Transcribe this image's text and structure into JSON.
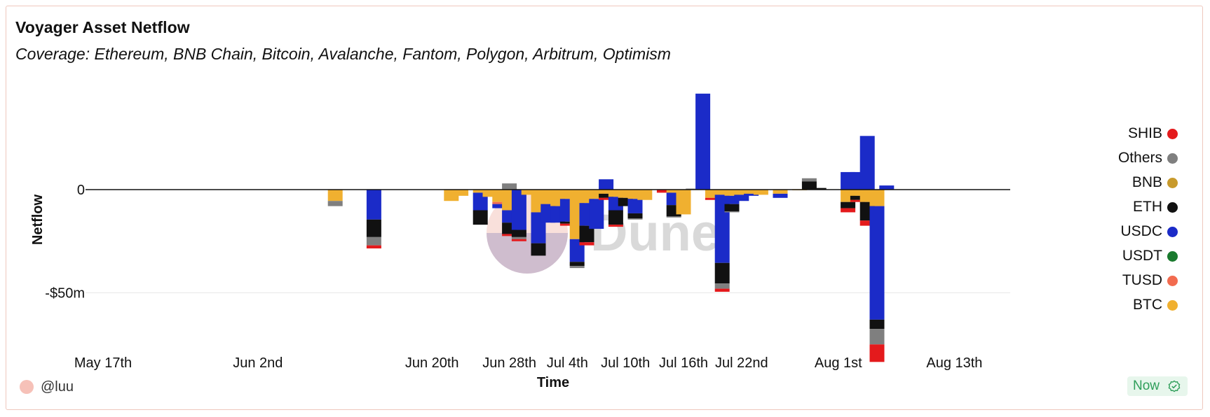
{
  "title": "Voyager Asset Netflow",
  "subtitle": "Coverage: Ethereum, BNB Chain, Bitcoin, Avalanche, Fantom, Polygon, Arbitrum, Optimism",
  "watermark": "Dune",
  "author": "@luu",
  "now_label": "Now",
  "legend": [
    {
      "name": "SHIB",
      "color": "#e41a1c"
    },
    {
      "name": "Others",
      "color": "#7f7f7f"
    },
    {
      "name": "BNB",
      "color": "#c89a2c"
    },
    {
      "name": "ETH",
      "color": "#111111"
    },
    {
      "name": "USDC",
      "color": "#1b2bc8"
    },
    {
      "name": "USDT",
      "color": "#1a7a2e"
    },
    {
      "name": "TUSD",
      "color": "#f26b4f"
    },
    {
      "name": "BTC",
      "color": "#f0b030"
    }
  ],
  "chart_data": {
    "type": "bar",
    "stacked": true,
    "title": "Voyager Asset Netflow",
    "xlabel": "Time",
    "ylabel": "Netflow",
    "x_range": [
      "2022-05-17",
      "2022-08-15"
    ],
    "ylim": [
      -75,
      48
    ],
    "y_ticks": [
      {
        "value": 0,
        "label": "0"
      },
      {
        "value": -50,
        "label": "-$50m"
      }
    ],
    "x_ticks": [
      {
        "date": "2022-05-17",
        "label": "May 17th"
      },
      {
        "date": "2022-06-02",
        "label": "Jun 2nd"
      },
      {
        "date": "2022-06-20",
        "label": "Jun 20th"
      },
      {
        "date": "2022-06-28",
        "label": "Jun 28th"
      },
      {
        "date": "2022-07-04",
        "label": "Jul 4th"
      },
      {
        "date": "2022-07-10",
        "label": "Jul 10th"
      },
      {
        "date": "2022-07-16",
        "label": "Jul 16th"
      },
      {
        "date": "2022-07-22",
        "label": "Jul 22nd"
      },
      {
        "date": "2022-08-01",
        "label": "Aug 1st"
      },
      {
        "date": "2022-08-13",
        "label": "Aug 13th"
      }
    ],
    "units": "USD millions",
    "bars": [
      {
        "date": "2022-06-10",
        "BTC": -5.5,
        "Others": -2.5
      },
      {
        "date": "2022-06-14",
        "USDC": -14.5,
        "ETH": -8.5,
        "Others": -4,
        "SHIB": -1.5
      },
      {
        "date": "2022-06-22",
        "BTC": -5.5
      },
      {
        "date": "2022-06-23",
        "BTC": -3
      },
      {
        "date": "2022-06-25",
        "BTC": -1.5,
        "USDC": -8.5,
        "ETH": -7
      },
      {
        "date": "2022-06-26",
        "BTC": -3.5
      },
      {
        "date": "2022-06-27",
        "BTC": -6,
        "USDC": -2,
        "TUSD": -1
      },
      {
        "date": "2022-06-28",
        "BTC": -10,
        "USDC": -6,
        "ETH": -5.5,
        "Others": 3,
        "SHIB": -1
      },
      {
        "date": "2022-06-29",
        "USDC": -19.5,
        "ETH": -3.5,
        "Others": -1,
        "SHIB": -1
      },
      {
        "date": "2022-06-30",
        "BTC": -2.5
      },
      {
        "date": "2022-07-01",
        "BTC": -11,
        "USDC": -15,
        "ETH": -6
      },
      {
        "date": "2022-07-02",
        "BTC": -7,
        "USDC": -9
      },
      {
        "date": "2022-07-03",
        "BTC": -8,
        "USDC": -8
      },
      {
        "date": "2022-07-04",
        "BTC": -4.5,
        "USDC": -11,
        "ETH": -1,
        "SHIB": -1
      },
      {
        "date": "2022-07-05",
        "BTC": -24,
        "USDC": -11,
        "ETH": -2,
        "Others": -1
      },
      {
        "date": "2022-07-06",
        "BTC": -6.5,
        "USDC": -11,
        "ETH": -8,
        "SHIB": -1.5
      },
      {
        "date": "2022-07-07",
        "BTC": -4.5,
        "USDC": -14.5
      },
      {
        "date": "2022-07-08",
        "USDC": 5,
        "BTC": -2,
        "ETH": -2,
        "SHIB": -1
      },
      {
        "date": "2022-07-09",
        "BTC": -3.5,
        "USDC": -6.5,
        "ETH": -7,
        "SHIB": -1
      },
      {
        "date": "2022-07-10",
        "BTC": -4,
        "ETH": -4
      },
      {
        "date": "2022-07-11",
        "BTC": -4.5,
        "USDC": -7,
        "ETH": -2.5,
        "Others": -0.5
      },
      {
        "date": "2022-07-12",
        "BTC": -5
      },
      {
        "date": "2022-07-14",
        "SHIB": -1.5
      },
      {
        "date": "2022-07-15",
        "BTC": -1.5,
        "USDC": -6,
        "ETH": -5.5,
        "Others": -0.5
      },
      {
        "date": "2022-07-16",
        "BTC": -12
      },
      {
        "date": "2022-07-17",
        "Others": 0.5
      },
      {
        "date": "2022-07-18",
        "USDC": 46.5
      },
      {
        "date": "2022-07-19",
        "BTC": -4,
        "SHIB": -1
      },
      {
        "date": "2022-07-20",
        "BTC": -2.5,
        "USDC": -33,
        "ETH": -10,
        "Others": -2.5,
        "SHIB": -1.5
      },
      {
        "date": "2022-07-21",
        "BTC": -3,
        "USDC": -4,
        "ETH": -3.5,
        "Others": -0.5
      },
      {
        "date": "2022-07-22",
        "BTC": -2.5,
        "USDC": -3
      },
      {
        "date": "2022-07-23",
        "BTC": -2,
        "USDC": -1
      },
      {
        "date": "2022-07-24",
        "BTC": -2.5
      },
      {
        "date": "2022-07-26",
        "BTC": -2,
        "USDC": -2
      },
      {
        "date": "2022-07-28",
        "BTC": -0.3
      },
      {
        "date": "2022-07-29",
        "ETH": 4,
        "Others": 1.5
      },
      {
        "date": "2022-07-30",
        "ETH": 0.8
      },
      {
        "date": "2022-08-02",
        "USDC": 8.5,
        "BTC": -6,
        "ETH": -3,
        "SHIB": -2
      },
      {
        "date": "2022-08-03",
        "USDC": 8.5,
        "BTC": -3,
        "ETH": -2,
        "SHIB": -1
      },
      {
        "date": "2022-08-04",
        "USDC": 26,
        "BTC": -6,
        "ETH": -9,
        "SHIB": -2.5
      },
      {
        "date": "2022-08-05",
        "BTC": -8,
        "USDC": -55,
        "ETH": -4.5,
        "Others": -7.5,
        "SHIB": -8.5
      },
      {
        "date": "2022-08-06",
        "USDC": 2
      }
    ]
  }
}
